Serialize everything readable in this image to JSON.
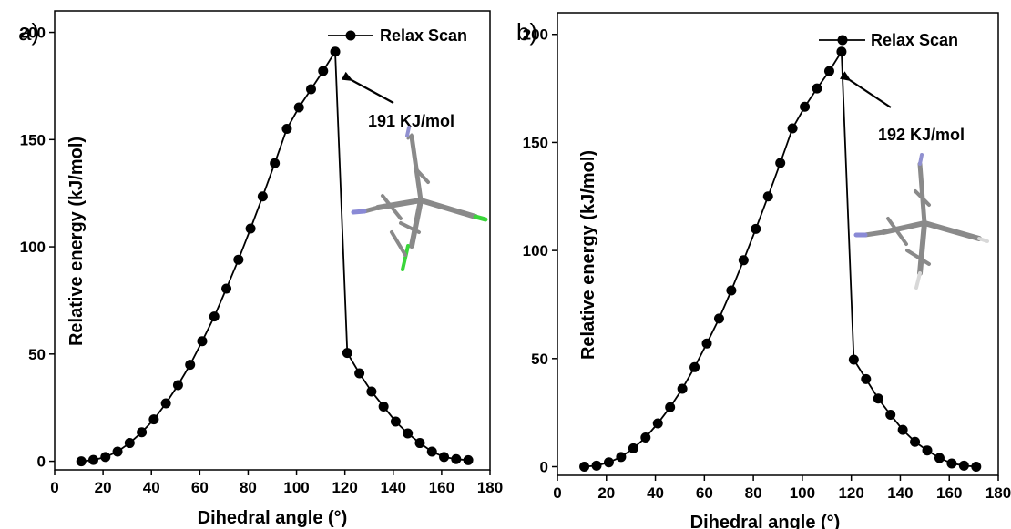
{
  "chart_data": [
    {
      "type": "line",
      "panel_label": "a)",
      "xlabel": "Dihedral angle (°)",
      "ylabel": "Relative energy (kJ/mol)",
      "xlim": [
        0,
        180
      ],
      "ylim": [
        -4,
        210
      ],
      "xticks": [
        0,
        20,
        40,
        60,
        80,
        100,
        120,
        140,
        160,
        180
      ],
      "yticks": [
        0,
        50,
        100,
        150,
        200
      ],
      "grid": false,
      "legend": "top-right",
      "series": [
        {
          "name": "Relax Scan",
          "color": "#000000",
          "marker": "circle",
          "x": [
            11,
            16,
            21,
            26,
            31,
            36,
            41,
            46,
            51,
            56,
            61,
            66,
            71,
            76,
            81,
            86,
            91,
            96,
            101,
            106,
            111,
            116,
            121,
            126,
            131,
            136,
            141,
            146,
            151,
            156,
            161,
            166,
            171
          ],
          "y": [
            0,
            0.6,
            2,
            4.5,
            8.5,
            13.5,
            19.5,
            27,
            35.5,
            45,
            56,
            67.5,
            80.5,
            94,
            108.5,
            123.5,
            139,
            155,
            165,
            173.5,
            182,
            191,
            50.5,
            41,
            32.5,
            25.5,
            18.5,
            13,
            8.5,
            4.5,
            2,
            1,
            0.5
          ]
        }
      ],
      "annotations": [
        {
          "text": "191 KJ/mol",
          "points_to": [
            116,
            191
          ]
        }
      ],
      "inset_image": "molecule-structure-chloro"
    },
    {
      "type": "line",
      "panel_label": "b)",
      "xlabel": "Dihedral angle (°)",
      "ylabel": "Relative energy (kJ/mol)",
      "xlim": [
        0,
        180
      ],
      "ylim": [
        -4,
        210
      ],
      "xticks": [
        0,
        20,
        40,
        60,
        80,
        100,
        120,
        140,
        160,
        180
      ],
      "yticks": [
        0,
        50,
        100,
        150,
        200
      ],
      "grid": false,
      "legend": "top-right",
      "series": [
        {
          "name": "Relax Scan",
          "color": "#000000",
          "marker": "circle",
          "x": [
            11,
            16,
            21,
            26,
            31,
            36,
            41,
            46,
            51,
            56,
            61,
            66,
            71,
            76,
            81,
            86,
            91,
            96,
            101,
            106,
            111,
            116,
            121,
            126,
            131,
            136,
            141,
            146,
            151,
            156,
            161,
            166,
            171
          ],
          "y": [
            0,
            0.5,
            2,
            4.5,
            8.5,
            13.5,
            20,
            27.5,
            36,
            46,
            57,
            68.5,
            81.5,
            95.5,
            110,
            125,
            140.5,
            156.5,
            166.5,
            175,
            183,
            192,
            49.5,
            40.5,
            31.5,
            24,
            17,
            11.5,
            7.5,
            4,
            1.5,
            0.5,
            0
          ]
        }
      ],
      "annotations": [
        {
          "text": "192 KJ/mol",
          "points_to": [
            116,
            192
          ]
        }
      ],
      "inset_image": "molecule-structure"
    }
  ]
}
